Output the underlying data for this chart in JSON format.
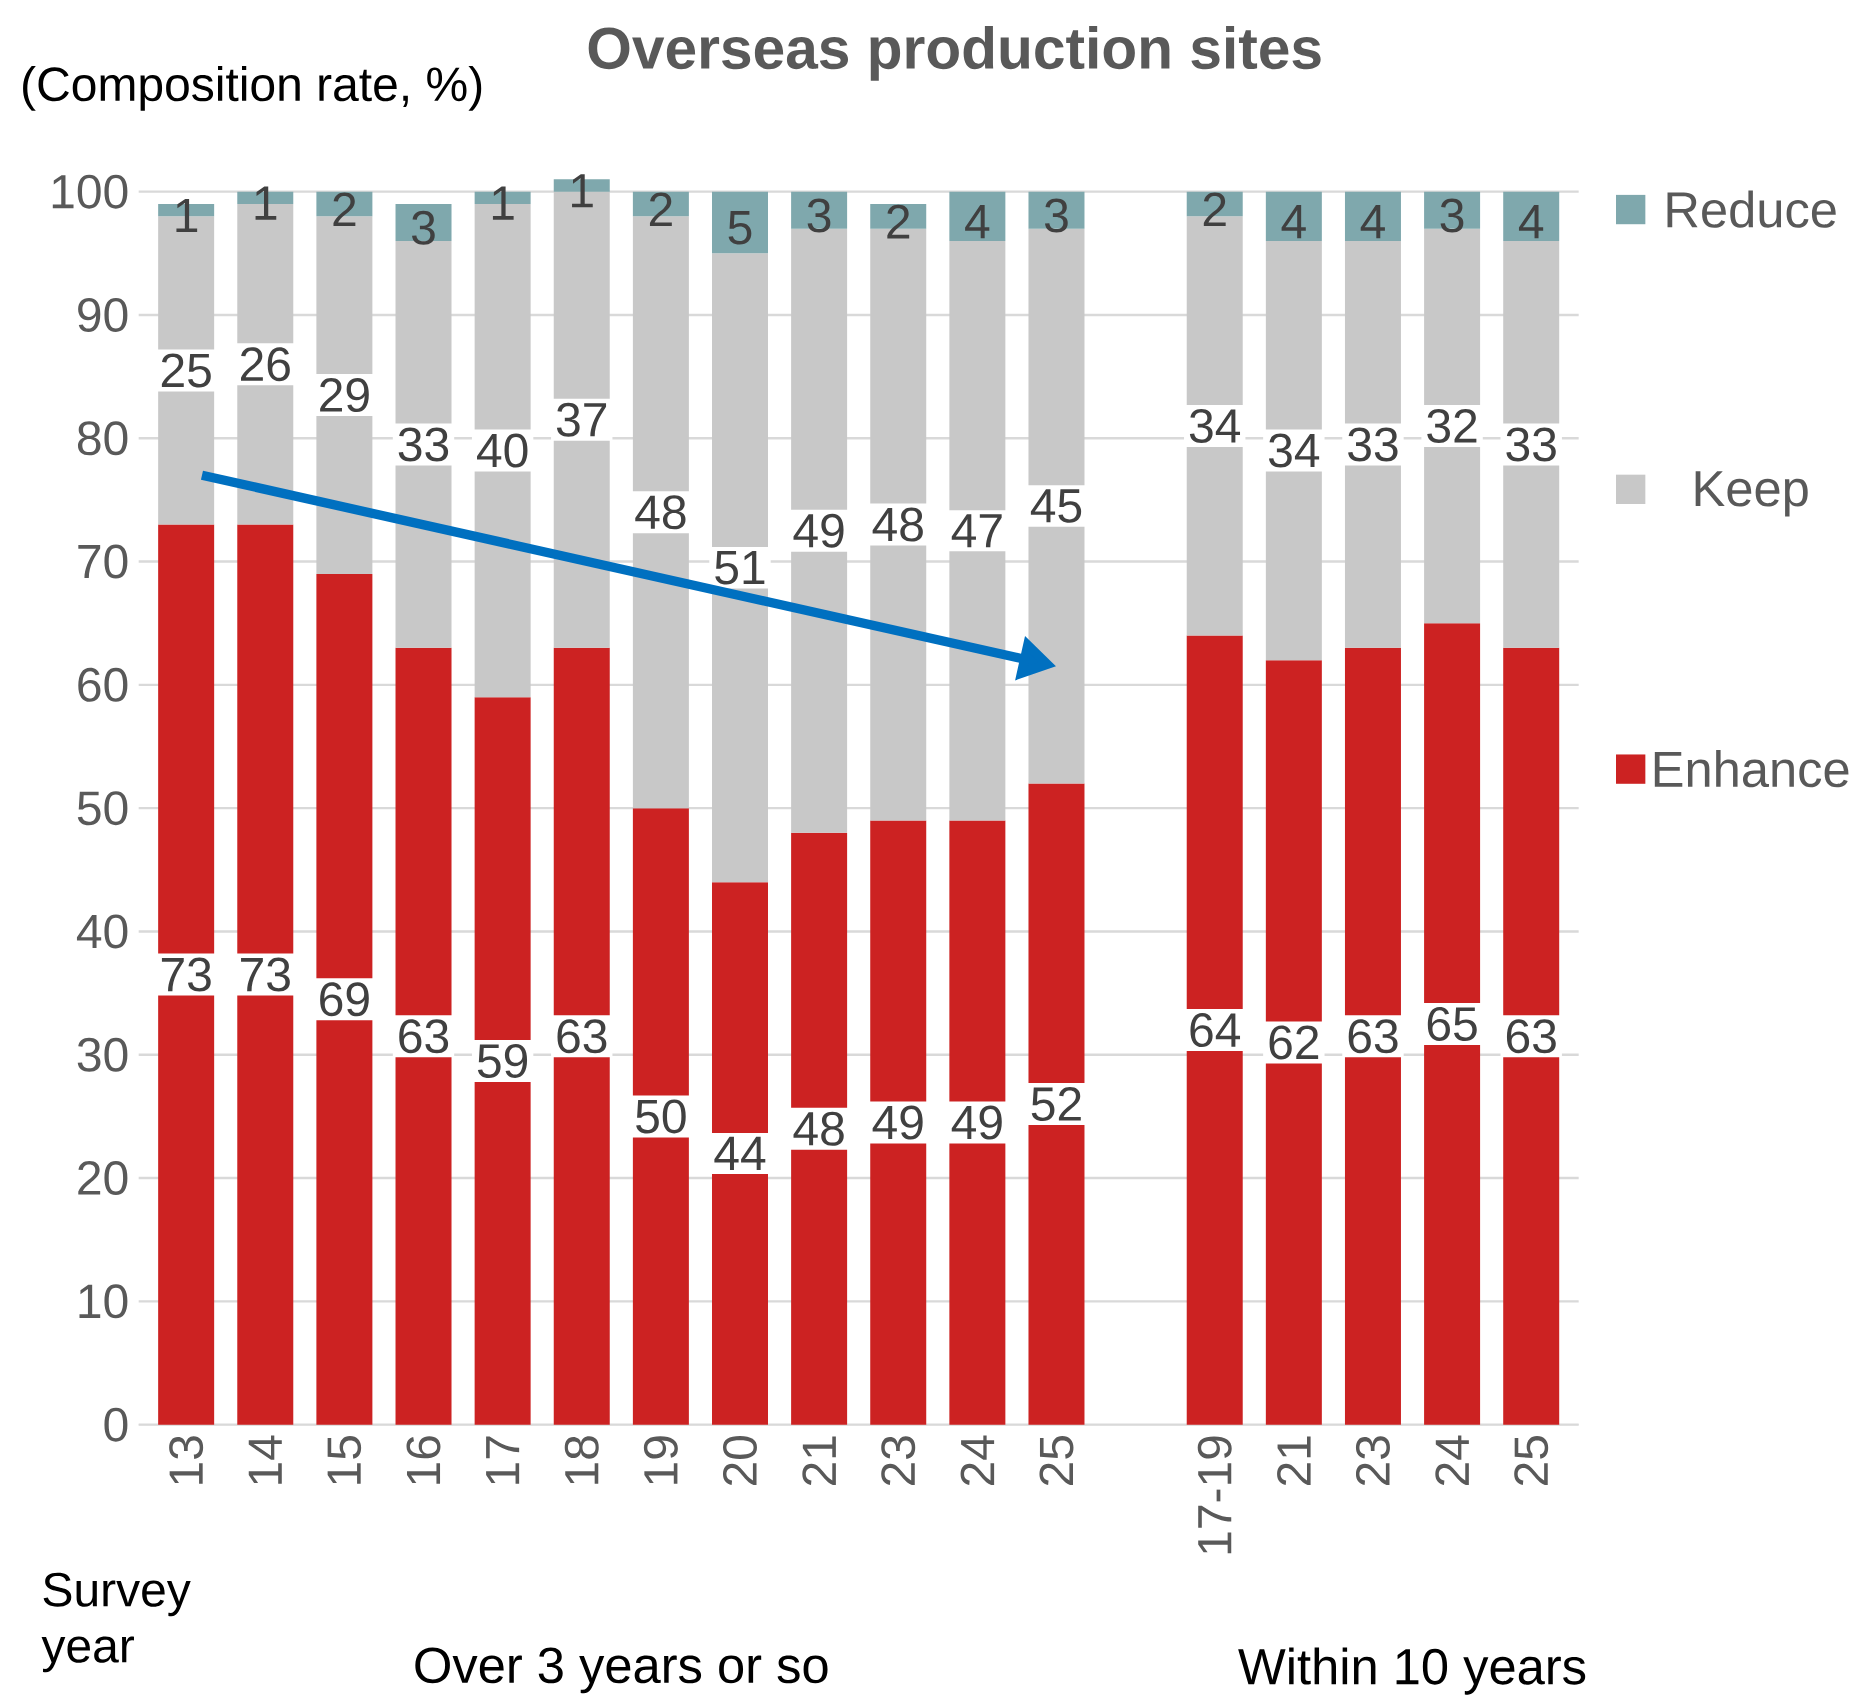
{
  "chart_data": {
    "type": "bar",
    "stacked": true,
    "title": "Overseas production sites",
    "ylabel": "(Composition rate, %)",
    "categories": [
      "13",
      "14",
      "15",
      "16",
      "17",
      "18",
      "19",
      "20",
      "21",
      "23",
      "24",
      "25",
      null,
      "17-19",
      "21",
      "23",
      "24",
      "25"
    ],
    "series": [
      {
        "name": "Enhance",
        "color": "#cc2222",
        "values": [
          73,
          73,
          69,
          63,
          59,
          63,
          50,
          44,
          48,
          49,
          49,
          52,
          null,
          64,
          62,
          63,
          65,
          63
        ]
      },
      {
        "name": "Keep",
        "color": "#c8c8c8",
        "values": [
          25,
          26,
          29,
          33,
          40,
          37,
          48,
          51,
          49,
          48,
          47,
          45,
          null,
          34,
          34,
          33,
          32,
          33
        ]
      },
      {
        "name": "Reduce",
        "color": "#7fa8ad",
        "values": [
          1,
          1,
          2,
          3,
          1,
          1,
          2,
          5,
          3,
          2,
          4,
          3,
          null,
          2,
          4,
          4,
          3,
          4
        ]
      }
    ],
    "ylim": [
      0,
      101
    ],
    "yticks": [
      0,
      10,
      20,
      30,
      40,
      50,
      60,
      70,
      80,
      90,
      100
    ],
    "grid": "y",
    "legend": "right",
    "data_labels": true,
    "annotations": [
      "Survey year",
      "Over 3 years or so",
      "Within 10 years"
    ]
  }
}
